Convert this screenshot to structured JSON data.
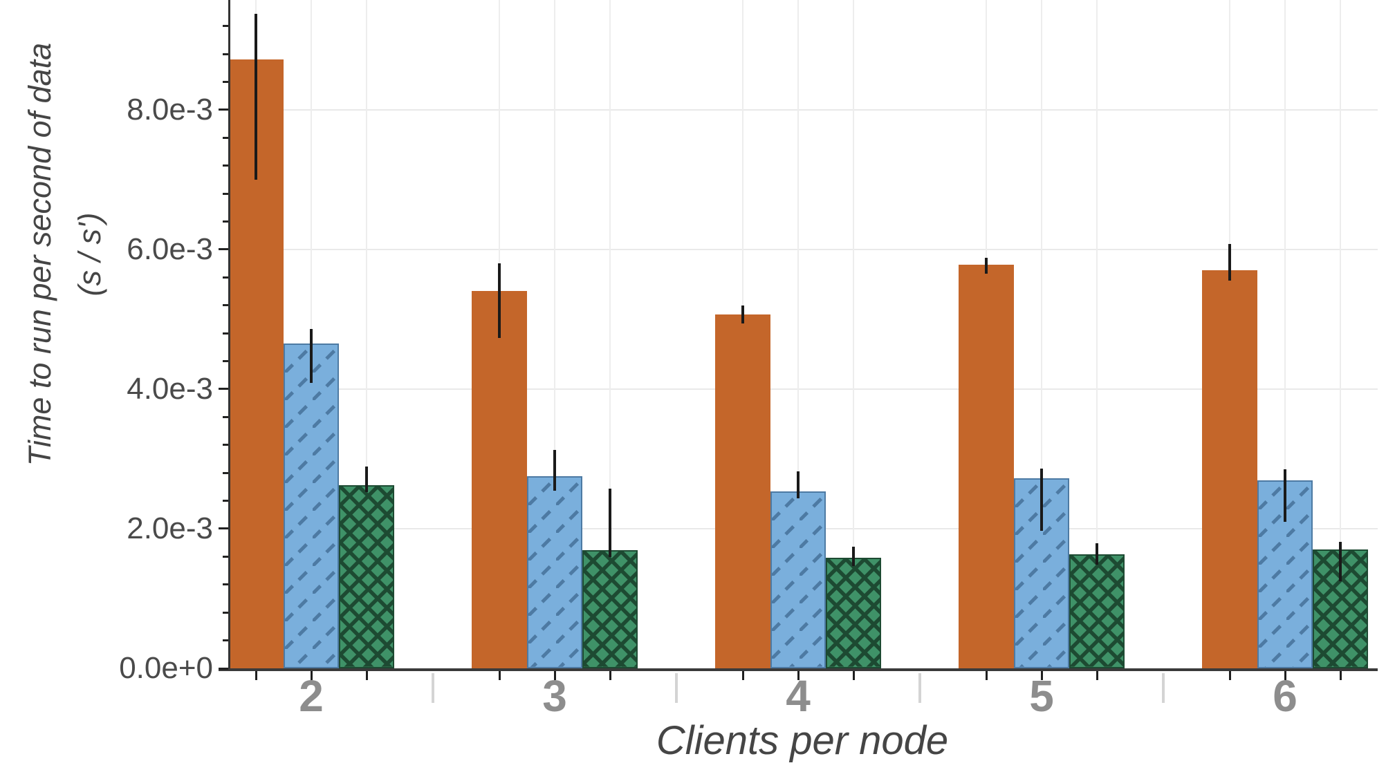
{
  "figure": {
    "xlabel": "Clients per node",
    "ylabel_line1": "Time to run per second of data",
    "ylabel_line2": "(s / s')"
  },
  "chart_data": {
    "type": "bar",
    "title": "",
    "xlabel": "Clients per node",
    "ylabel": "Time to run per second of data (s / s')",
    "categories": [
      "2",
      "3",
      "4",
      "5",
      "6"
    ],
    "series": [
      {
        "name": "orange-solid",
        "fill": "#c4662a",
        "hatch": "none",
        "hatch_color": null,
        "values": [
          0.00872,
          0.00541,
          0.00507,
          0.00578,
          0.0057
        ],
        "err_lo": [
          0.007,
          0.00473,
          0.00494,
          0.00565,
          0.00555
        ],
        "err_hi": [
          0.00938,
          0.0058,
          0.0052,
          0.00588,
          0.00608
        ]
      },
      {
        "name": "blue-diagonal-hatch",
        "fill": "#7aafdc",
        "hatch": "diagonal",
        "hatch_color": "#4d7aa3",
        "values": [
          0.00465,
          0.00275,
          0.00253,
          0.00272,
          0.00269
        ],
        "err_lo": [
          0.00409,
          0.00254,
          0.00244,
          0.00197,
          0.0021
        ],
        "err_hi": [
          0.00486,
          0.00313,
          0.00282,
          0.00286,
          0.00285
        ]
      },
      {
        "name": "green-crosshatch",
        "fill": "#3f9268",
        "hatch": "cross",
        "hatch_color": "#1d4a32",
        "values": [
          0.00262,
          0.00169,
          0.00158,
          0.00163,
          0.0017
        ],
        "err_lo": [
          0.00252,
          0.00159,
          0.00147,
          0.00149,
          0.00125
        ],
        "err_hi": [
          0.00289,
          0.00257,
          0.00174,
          0.00179,
          0.00181
        ]
      }
    ],
    "y_ticks": [
      {
        "value": 0.0,
        "label": "0.0e+0"
      },
      {
        "value": 0.002,
        "label": "2.0e-3"
      },
      {
        "value": 0.004,
        "label": "4.0e-3"
      },
      {
        "value": 0.006,
        "label": "6.0e-3"
      },
      {
        "value": 0.008,
        "label": "8.0e-3"
      }
    ],
    "y_minor_step": 0.0004,
    "ylim": [
      0,
      0.009574
    ],
    "grid": {
      "horizontal": "major-ticks",
      "vertical": "bar-centers"
    },
    "legend": "none",
    "error_bars": true
  }
}
